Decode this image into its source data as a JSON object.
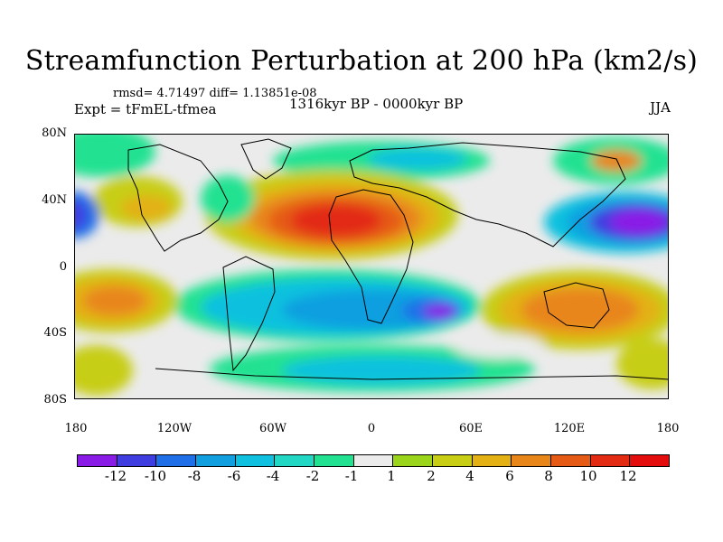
{
  "title": "Streamfunction Perturbation at 200 hPa (km2/s)",
  "stats": "rmsd= 4.71497 diff= 1.13851e-08",
  "experiment": "Expt = tFmEL-tfmea",
  "period": "1316kyr BP - 0000kyr BP",
  "season": "JJA",
  "lat_labels": [
    "80N",
    "40N",
    "0",
    "40S",
    "80S"
  ],
  "lon_labels": [
    "180",
    "120W",
    "60W",
    "0",
    "60E",
    "120E",
    "180"
  ],
  "colorbar": {
    "labels": [
      "-12",
      "-10",
      "-8",
      "-6",
      "-4",
      "-2",
      "-1",
      "1",
      "2",
      "4",
      "6",
      "8",
      "10",
      "12"
    ],
    "colors": [
      "#8a1ae6",
      "#3f3ce0",
      "#1f6fe8",
      "#119fe0",
      "#0fc1de",
      "#22d8c4",
      "#22e292",
      "#ebebeb",
      "#9ad51c",
      "#c7ce14",
      "#e3b114",
      "#e8861a",
      "#e55a14",
      "#e32a12",
      "#e40d0d"
    ]
  }
}
